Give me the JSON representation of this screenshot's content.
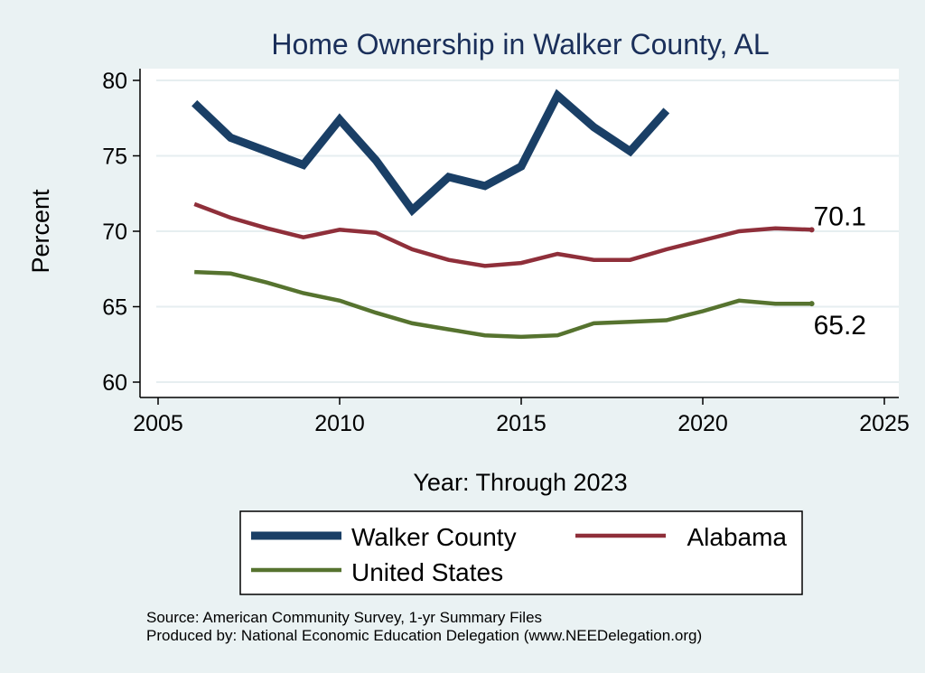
{
  "chart_data": {
    "type": "line",
    "title": "Home Ownership in Walker County, AL",
    "xlabel": "Year: Through 2023",
    "ylabel": "Percent",
    "xlim": [
      2005,
      2025
    ],
    "ylim": [
      60,
      80
    ],
    "x_ticks": [
      2005,
      2010,
      2015,
      2020,
      2025
    ],
    "y_ticks": [
      60,
      65,
      70,
      75,
      80
    ],
    "grid": true,
    "legend_position": "bottom",
    "series": [
      {
        "name": "Walker County",
        "color": "#1a3f66",
        "x": [
          2006,
          2007,
          2008,
          2009,
          2010,
          2011,
          2012,
          2013,
          2014,
          2015,
          2016,
          2017,
          2018,
          2019
        ],
        "values": [
          78.5,
          76.2,
          75.3,
          74.4,
          77.4,
          74.7,
          71.4,
          73.6,
          73.0,
          74.3,
          79.0,
          76.9,
          75.3,
          78.0
        ]
      },
      {
        "name": "Alabama",
        "color": "#8f2f3a",
        "x": [
          2006,
          2007,
          2008,
          2009,
          2010,
          2011,
          2012,
          2013,
          2014,
          2015,
          2016,
          2017,
          2018,
          2019,
          2020,
          2021,
          2022,
          2023
        ],
        "values": [
          71.8,
          70.9,
          70.2,
          69.6,
          70.1,
          69.9,
          68.8,
          68.1,
          67.7,
          67.9,
          68.5,
          68.1,
          68.1,
          68.8,
          69.4,
          70.0,
          70.2,
          70.1
        ]
      },
      {
        "name": "United States",
        "color": "#56732f",
        "x": [
          2006,
          2007,
          2008,
          2009,
          2010,
          2011,
          2012,
          2013,
          2014,
          2015,
          2016,
          2017,
          2018,
          2019,
          2020,
          2021,
          2022,
          2023
        ],
        "values": [
          67.3,
          67.2,
          66.6,
          65.9,
          65.4,
          64.6,
          63.9,
          63.5,
          63.1,
          63.0,
          63.1,
          63.9,
          64.0,
          64.1,
          64.7,
          65.4,
          65.2,
          65.2
        ]
      }
    ],
    "annotations": [
      {
        "text": "70.1",
        "series": "Alabama",
        "x": 2023,
        "y": 70.1
      },
      {
        "text": "65.2",
        "series": "United States",
        "x": 2023,
        "y": 65.2
      }
    ]
  },
  "footer": {
    "source": "Source: American Community Survey, 1-yr Summary Files",
    "produced": "Produced by: National Economic Education Delegation (www.NEEDelegation.org)"
  }
}
